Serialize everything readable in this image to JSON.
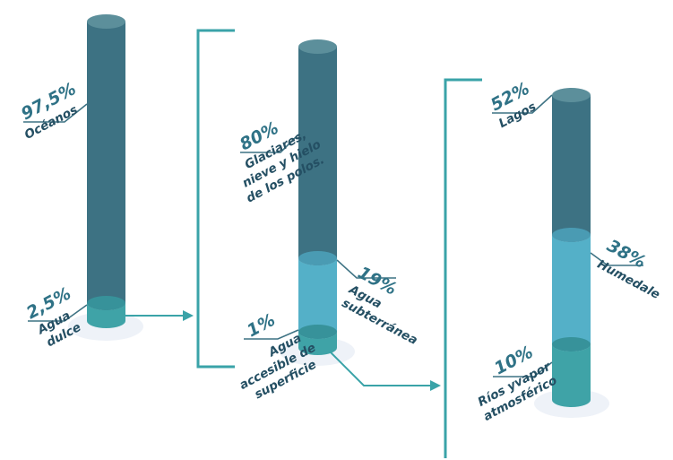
{
  "colors": {
    "dark": "#3d7283",
    "dark_top": "#5c8f9b",
    "light": "#54b0c8",
    "light_top": "#6fc3d6",
    "teal": "#3fa3a7",
    "teal_top": "#37929a",
    "shadow": "#eef2f8",
    "bracket": "#3aa3a8",
    "pct_text": "#2f7286",
    "label_text": "#244f63"
  },
  "chart_data": [
    {
      "type": "stacked-cylinder",
      "series": [
        {
          "value": "97,5%",
          "label": [
            "Océanos"
          ],
          "share": 97.5
        },
        {
          "value": "2,5%",
          "label": [
            "Agua",
            "dulce"
          ],
          "share": 2.5
        }
      ]
    },
    {
      "type": "stacked-cylinder",
      "series": [
        {
          "value": "80%",
          "label": [
            "Glaciares,",
            "nieve y hielo",
            "de los polos."
          ],
          "share": 80
        },
        {
          "value": "19%",
          "label": [
            "Agua",
            "subterránea"
          ],
          "share": 19
        },
        {
          "value": "1%",
          "label": [
            "Agua",
            "accesible de",
            "superficie"
          ],
          "share": 1
        }
      ]
    },
    {
      "type": "stacked-cylinder",
      "series": [
        {
          "value": "52%",
          "label": [
            "Lagos"
          ],
          "share": 52
        },
        {
          "value": "38%",
          "label": [
            "Humedale"
          ],
          "share": 38
        },
        {
          "value": "10%",
          "label": [
            "Ríos yvapor",
            "atmosférico"
          ],
          "share": 10
        }
      ]
    }
  ]
}
